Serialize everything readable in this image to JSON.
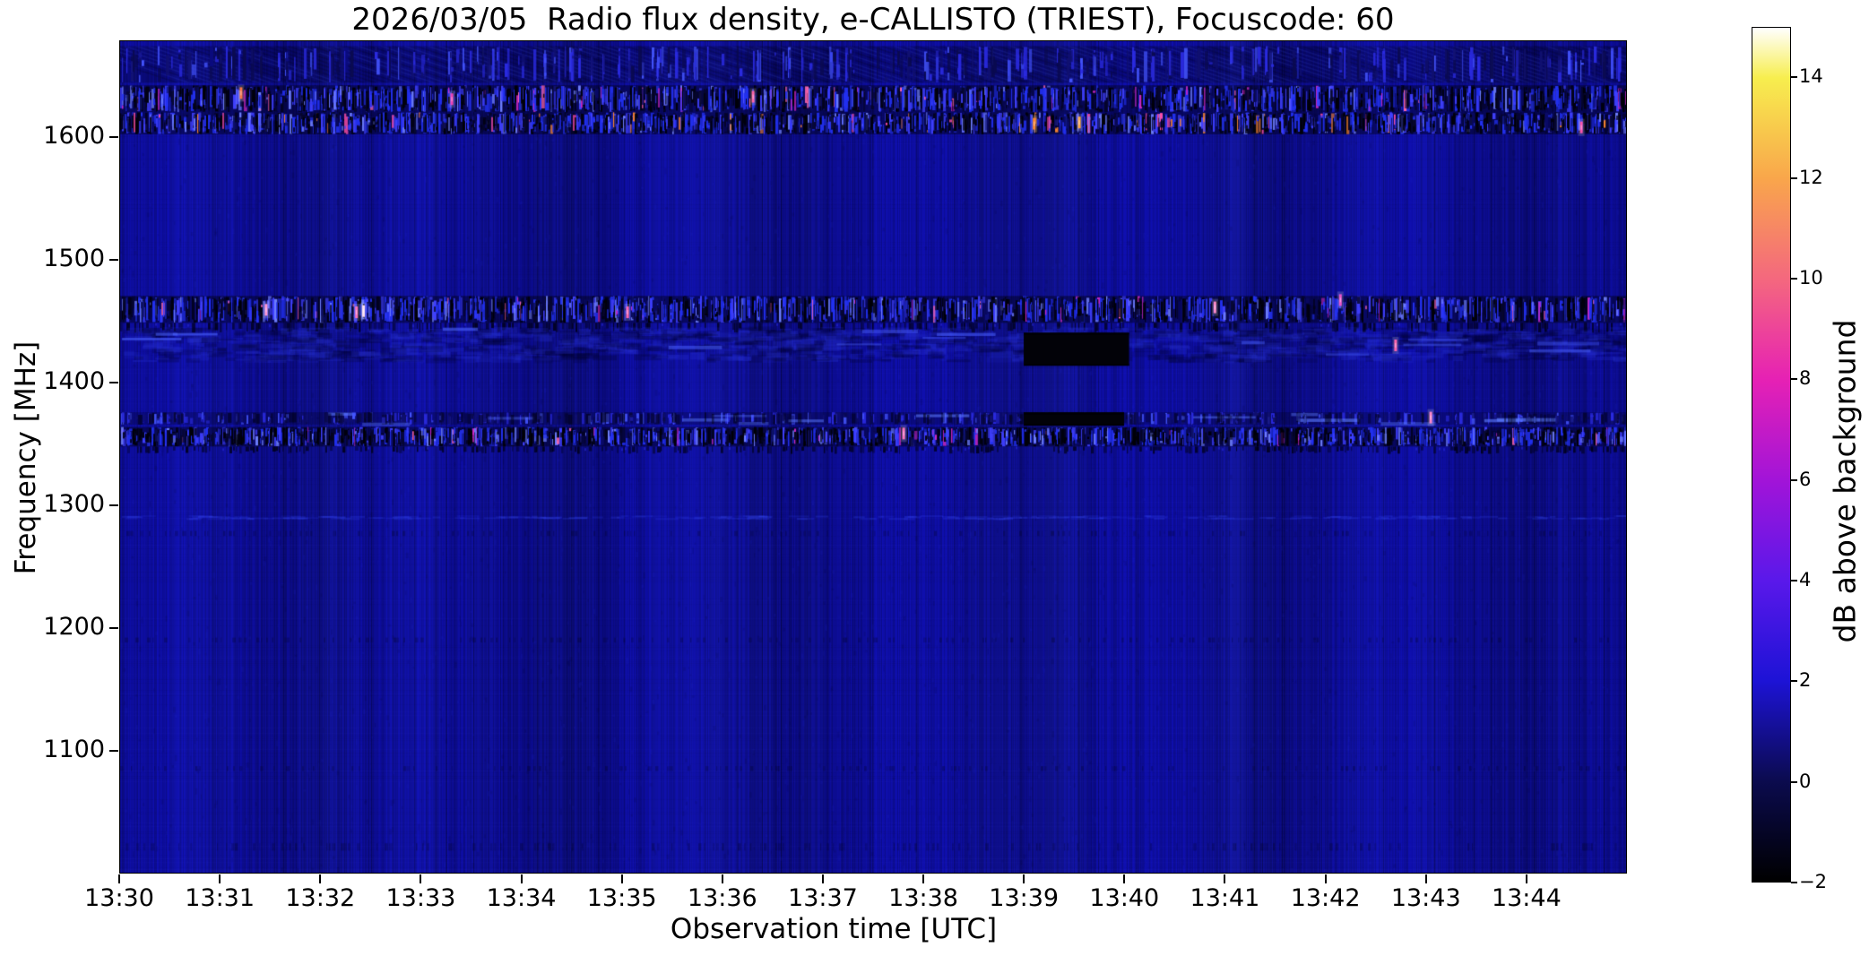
{
  "title": "2026/03/05  Radio flux density, e-CALLISTO (TRIEST), Focuscode: 60",
  "axes": {
    "x": {
      "label": "Observation time [UTC]",
      "tick_labels": [
        "13:30",
        "13:31",
        "13:32",
        "13:33",
        "13:34",
        "13:35",
        "13:36",
        "13:37",
        "13:38",
        "13:39",
        "13:40",
        "13:41",
        "13:42",
        "13:43",
        "13:44"
      ],
      "tick_minutes": [
        0,
        1,
        2,
        3,
        4,
        5,
        6,
        7,
        8,
        9,
        10,
        11,
        12,
        13,
        14
      ]
    },
    "y": {
      "label": "Frequency [MHz]",
      "tick_labels": [
        "1600",
        "1500",
        "1400",
        "1300",
        "1200",
        "1100"
      ],
      "tick_values": [
        1600,
        1500,
        1400,
        1300,
        1200,
        1100
      ]
    }
  },
  "colorbar": {
    "label": "dB above background",
    "tick_labels": [
      "14",
      "12",
      "10",
      "8",
      "6",
      "4",
      "2",
      "0",
      "−2"
    ],
    "tick_values": [
      14,
      12,
      10,
      8,
      6,
      4,
      2,
      0,
      -2
    ],
    "vmin": -2,
    "vmax": 15,
    "colormap": "gnuplot2",
    "gradient_stops": [
      [
        "0%",
        "#000000"
      ],
      [
        "11.76%",
        "#0b0b4e"
      ],
      [
        "23.53%",
        "#1d13d6"
      ],
      [
        "35.29%",
        "#5a18ea"
      ],
      [
        "47.06%",
        "#a214d8"
      ],
      [
        "58.82%",
        "#e621b4"
      ],
      [
        "70.59%",
        "#f4687e"
      ],
      [
        "82.35%",
        "#f9a64b"
      ],
      [
        "94.12%",
        "#f7ee4e"
      ],
      [
        "100%",
        "#ffffff"
      ]
    ]
  },
  "chart_data": {
    "type": "heatmap",
    "title": "2026/03/05  Radio flux density, e-CALLISTO (TRIEST), Focuscode: 60",
    "xlabel": "Observation time [UTC]",
    "ylabel": "Frequency [MHz]",
    "x_range_utc": [
      "13:30",
      "13:45"
    ],
    "x_tick_labels": [
      "13:30",
      "13:31",
      "13:32",
      "13:33",
      "13:34",
      "13:35",
      "13:36",
      "13:37",
      "13:38",
      "13:39",
      "13:40",
      "13:41",
      "13:42",
      "13:43",
      "13:44"
    ],
    "y_range_mhz": [
      1000,
      1679
    ],
    "y_tick_values_mhz": [
      1600,
      1500,
      1400,
      1300,
      1200,
      1100
    ],
    "color_scale_db": [
      -2,
      15
    ],
    "colorbar_tick_values_db": [
      14,
      12,
      10,
      8,
      6,
      4,
      2,
      0,
      -2
    ],
    "background_level_db": 0.8,
    "background_color": "#0d0d94",
    "instrument": "e-CALLISTO (TRIEST)",
    "focuscode": "60",
    "date": "2026/03/05",
    "features": [
      {
        "name": "diagonal-texture-zone",
        "freq_mhz": [
          1645,
          1675
        ],
        "time_min": [
          0,
          15
        ],
        "style": "diagonal",
        "note": "faint diagonal interference striping below top edge"
      },
      {
        "name": "rfi-speckle-band-1632",
        "freq_mhz": [
          1621,
          1643
        ],
        "time_min": [
          0,
          15
        ],
        "style": "speckle-strong",
        "accent": "pink"
      },
      {
        "name": "rfi-speckle-band-1612",
        "freq_mhz": [
          1603,
          1621
        ],
        "time_min": [
          0,
          15
        ],
        "style": "speckle-strong",
        "accent": "orange"
      },
      {
        "name": "rfi-speckle-band-1460",
        "freq_mhz": [
          1449,
          1471
        ],
        "time_min": [
          0,
          15
        ],
        "style": "speckle-strong",
        "accent": "pink",
        "note": "strongest broadband RFI lane"
      },
      {
        "name": "dark-lane-1445",
        "freq_mhz": [
          1441,
          1449
        ],
        "time_min": [
          0,
          15
        ],
        "style": "dark-dotted"
      },
      {
        "name": "mottled-band-1430",
        "freq_mhz": [
          1416,
          1446
        ],
        "time_min": [
          0,
          15
        ],
        "style": "mottled"
      },
      {
        "name": "blanked-segment-1430",
        "freq_mhz": [
          1414,
          1441
        ],
        "time_min": [
          9.0,
          10.05
        ],
        "style": "blank",
        "note": "black data-gap rectangle 13:39-13:40"
      },
      {
        "name": "rfi-line-1371",
        "freq_mhz": [
          1366,
          1376
        ],
        "time_min": [
          0,
          15
        ],
        "style": "faint-line"
      },
      {
        "name": "blanked-segment-1371",
        "freq_mhz": [
          1365,
          1376
        ],
        "time_min": [
          9.0,
          10.0
        ],
        "style": "blank",
        "note": "black data-gap bar 13:39-13:40"
      },
      {
        "name": "rfi-speckle-band-1356",
        "freq_mhz": [
          1348,
          1364
        ],
        "time_min": [
          0,
          15
        ],
        "style": "speckle-strong",
        "accent": "pink-few"
      },
      {
        "name": "dark-row-1345",
        "freq_mhz": [
          1342,
          1348
        ],
        "time_min": [
          0,
          15
        ],
        "style": "dark-dotted"
      },
      {
        "name": "faint-row-1290",
        "freq_mhz": [
          1288,
          1292
        ],
        "time_min": [
          0,
          15
        ],
        "style": "faint-bright-row"
      },
      {
        "name": "faint-row-1277",
        "freq_mhz": [
          1275,
          1279
        ],
        "time_min": [
          0,
          15
        ],
        "style": "dark-dotted-faint"
      },
      {
        "name": "faint-row-1190",
        "freq_mhz": [
          1188,
          1192
        ],
        "time_min": [
          0,
          15
        ],
        "style": "dark-dotted-faint"
      },
      {
        "name": "faint-row-1085",
        "freq_mhz": [
          1083,
          1087
        ],
        "time_min": [
          0,
          15
        ],
        "style": "dark-dotted-faint"
      },
      {
        "name": "faint-row-1020",
        "freq_mhz": [
          1018,
          1024
        ],
        "time_min": [
          0,
          15
        ],
        "style": "dark-dotted-faint"
      }
    ],
    "bright_spots": [
      {
        "t_min": 1.45,
        "freq_mhz": 1460,
        "color": "#ff9ad0"
      },
      {
        "t_min": 2.35,
        "freq_mhz": 1458,
        "color": "#ff77c0"
      },
      {
        "t_min": 2.42,
        "freq_mhz": 1459,
        "color": "#ffe0f0"
      },
      {
        "t_min": 5.05,
        "freq_mhz": 1458,
        "color": "#ff66b8"
      },
      {
        "t_min": 9.1,
        "freq_mhz": 1612,
        "color": "#ff8833"
      },
      {
        "t_min": 9.55,
        "freq_mhz": 1613,
        "color": "#ffaa44"
      },
      {
        "t_min": 12.7,
        "freq_mhz": 1431,
        "color": "#ff66b0"
      },
      {
        "t_min": 14.55,
        "freq_mhz": 1609,
        "color": "#ff55aa"
      },
      {
        "t_min": 1.2,
        "freq_mhz": 1637,
        "color": "#ff7744"
      },
      {
        "t_min": 7.8,
        "freq_mhz": 1359,
        "color": "#ff77c0"
      },
      {
        "t_min": 13.05,
        "freq_mhz": 1372,
        "color": "#ff88cc"
      },
      {
        "t_min": 12.15,
        "freq_mhz": 1468,
        "color": "#ee55cc"
      },
      {
        "t_min": 6.3,
        "freq_mhz": 1634,
        "color": "#ff66aa"
      },
      {
        "t_min": 3.3,
        "freq_mhz": 1632,
        "color": "#ee44bb"
      },
      {
        "t_min": 10.9,
        "freq_mhz": 1462,
        "color": "#ff8acc"
      }
    ]
  }
}
